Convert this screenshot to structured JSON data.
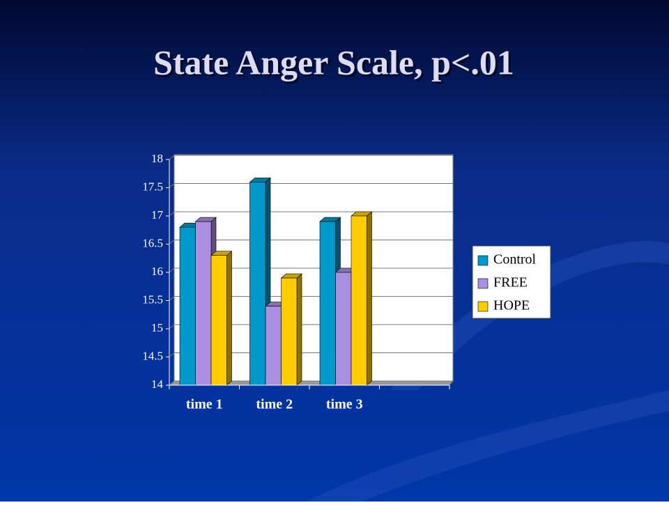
{
  "chart_data": {
    "type": "bar",
    "title": "State Anger Scale, p<.01",
    "categories": [
      "time 1",
      "time 2",
      "time 3",
      null
    ],
    "series": [
      {
        "name": "Control",
        "color": "#0099cc",
        "values": [
          16.8,
          17.6,
          16.9,
          null
        ]
      },
      {
        "name": "FREE",
        "color": "#aa8ee0",
        "values": [
          16.9,
          15.4,
          16.0,
          null
        ]
      },
      {
        "name": "HOPE",
        "color": "#ffcc00",
        "values": [
          16.3,
          15.9,
          17.0,
          null
        ]
      }
    ],
    "ylim": [
      14,
      18
    ],
    "yticks": [
      14,
      14.5,
      15,
      15.5,
      16,
      16.5,
      17,
      17.5,
      18
    ],
    "grid": true,
    "legend": "right"
  }
}
